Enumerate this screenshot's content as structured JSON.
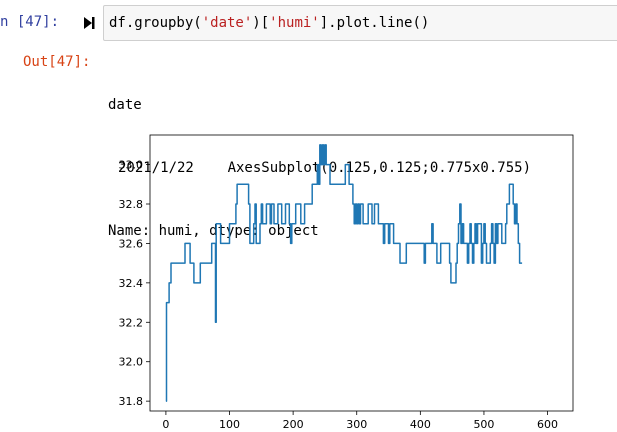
{
  "notebook": {
    "in_prompt": "n [47]:",
    "out_prompt": "Out[47]:",
    "code_parts": [
      {
        "text": "df.groupby(",
        "type": "plain"
      },
      {
        "text": "'date'",
        "type": "string"
      },
      {
        "text": ")[",
        "type": "plain"
      },
      {
        "text": "'humi'",
        "type": "string"
      },
      {
        "text": "].plot.line()",
        "type": "plain"
      }
    ],
    "output_lines": [
      "date",
      "2021/1/22    AxesSubplot(0.125,0.125;0.775x0.755)",
      "Name: humi, dtype: object"
    ]
  },
  "icons": {
    "run": "run-cell-icon"
  },
  "colors": {
    "line": "#1f77b4",
    "in_prompt": "#303f9f",
    "out_prompt": "#d84315",
    "string": "#ba2121"
  },
  "chart_data": {
    "type": "line",
    "xlim": [
      -25,
      640
    ],
    "ylim": [
      31.75,
      33.15
    ],
    "xticks": [
      0,
      100,
      200,
      300,
      400,
      500,
      600
    ],
    "yticks": [
      31.8,
      32.0,
      32.2,
      32.4,
      32.6,
      32.8,
      33.0
    ],
    "ytick_labels": [
      "31.8",
      "32.0",
      "32.2",
      "32.4",
      "32.6",
      "32.8",
      "33.0"
    ],
    "grid": false,
    "series": [
      {
        "points": [
          [
            0,
            31.8
          ],
          [
            1,
            32.3
          ],
          [
            5,
            32.4
          ],
          [
            8,
            32.5
          ],
          [
            28,
            32.5
          ],
          [
            30,
            32.6
          ],
          [
            36,
            32.6
          ],
          [
            38,
            32.5
          ],
          [
            42,
            32.5
          ],
          [
            44,
            32.4
          ],
          [
            52,
            32.4
          ],
          [
            54,
            32.5
          ],
          [
            70,
            32.5
          ],
          [
            72,
            32.6
          ],
          [
            77,
            32.6
          ],
          [
            78,
            32.2
          ],
          [
            79,
            32.7
          ],
          [
            84,
            32.7
          ],
          [
            86,
            32.6
          ],
          [
            98,
            32.6
          ],
          [
            100,
            32.7
          ],
          [
            108,
            32.7
          ],
          [
            110,
            32.8
          ],
          [
            112,
            32.9
          ],
          [
            128,
            32.9
          ],
          [
            130,
            32.8
          ],
          [
            132,
            32.6
          ],
          [
            136,
            32.6
          ],
          [
            138,
            32.7
          ],
          [
            140,
            32.8
          ],
          [
            142,
            32.6
          ],
          [
            146,
            32.6
          ],
          [
            148,
            32.7
          ],
          [
            150,
            32.8
          ],
          [
            152,
            32.7
          ],
          [
            156,
            32.7
          ],
          [
            158,
            32.8
          ],
          [
            162,
            32.8
          ],
          [
            164,
            32.7
          ],
          [
            166,
            32.8
          ],
          [
            168,
            32.8
          ],
          [
            170,
            32.7
          ],
          [
            174,
            32.7
          ],
          [
            176,
            32.8
          ],
          [
            180,
            32.8
          ],
          [
            182,
            32.7
          ],
          [
            186,
            32.7
          ],
          [
            188,
            32.8
          ],
          [
            192,
            32.8
          ],
          [
            194,
            32.7
          ],
          [
            196,
            32.6
          ],
          [
            198,
            32.7
          ],
          [
            202,
            32.7
          ],
          [
            204,
            32.8
          ],
          [
            210,
            32.8
          ],
          [
            212,
            32.7
          ],
          [
            216,
            32.7
          ],
          [
            218,
            32.8
          ],
          [
            228,
            32.8
          ],
          [
            230,
            32.9
          ],
          [
            236,
            32.9
          ],
          [
            238,
            33.0
          ],
          [
            240,
            32.9
          ],
          [
            242,
            33.1
          ],
          [
            244,
            33.0
          ],
          [
            246,
            33.1
          ],
          [
            248,
            33.0
          ],
          [
            250,
            33.1
          ],
          [
            252,
            33.0
          ],
          [
            256,
            33.0
          ],
          [
            258,
            32.9
          ],
          [
            280,
            32.9
          ],
          [
            282,
            33.0
          ],
          [
            286,
            33.0
          ],
          [
            288,
            32.9
          ],
          [
            292,
            32.9
          ],
          [
            294,
            32.8
          ],
          [
            296,
            32.7
          ],
          [
            298,
            32.8
          ],
          [
            300,
            32.7
          ],
          [
            302,
            32.8
          ],
          [
            304,
            32.7
          ],
          [
            306,
            32.8
          ],
          [
            308,
            32.8
          ],
          [
            310,
            32.7
          ],
          [
            316,
            32.7
          ],
          [
            318,
            32.8
          ],
          [
            322,
            32.8
          ],
          [
            324,
            32.7
          ],
          [
            326,
            32.7
          ],
          [
            328,
            32.8
          ],
          [
            332,
            32.8
          ],
          [
            334,
            32.7
          ],
          [
            340,
            32.7
          ],
          [
            342,
            32.6
          ],
          [
            344,
            32.7
          ],
          [
            348,
            32.7
          ],
          [
            350,
            32.6
          ],
          [
            352,
            32.7
          ],
          [
            356,
            32.7
          ],
          [
            358,
            32.6
          ],
          [
            366,
            32.6
          ],
          [
            368,
            32.5
          ],
          [
            376,
            32.5
          ],
          [
            378,
            32.6
          ],
          [
            404,
            32.6
          ],
          [
            406,
            32.5
          ],
          [
            408,
            32.6
          ],
          [
            416,
            32.6
          ],
          [
            418,
            32.7
          ],
          [
            420,
            32.6
          ],
          [
            424,
            32.6
          ],
          [
            426,
            32.5
          ],
          [
            430,
            32.5
          ],
          [
            432,
            32.6
          ],
          [
            444,
            32.6
          ],
          [
            446,
            32.5
          ],
          [
            448,
            32.4
          ],
          [
            454,
            32.4
          ],
          [
            456,
            32.5
          ],
          [
            458,
            32.6
          ],
          [
            460,
            32.7
          ],
          [
            462,
            32.8
          ],
          [
            464,
            32.6
          ],
          [
            466,
            32.7
          ],
          [
            468,
            32.6
          ],
          [
            472,
            32.6
          ],
          [
            474,
            32.5
          ],
          [
            476,
            32.6
          ],
          [
            478,
            32.7
          ],
          [
            480,
            32.6
          ],
          [
            482,
            32.5
          ],
          [
            484,
            32.6
          ],
          [
            486,
            32.7
          ],
          [
            488,
            32.6
          ],
          [
            490,
            32.7
          ],
          [
            494,
            32.7
          ],
          [
            496,
            32.5
          ],
          [
            498,
            32.6
          ],
          [
            500,
            32.7
          ],
          [
            502,
            32.6
          ],
          [
            504,
            32.5
          ],
          [
            508,
            32.5
          ],
          [
            510,
            32.6
          ],
          [
            512,
            32.7
          ],
          [
            514,
            32.6
          ],
          [
            516,
            32.5
          ],
          [
            518,
            32.7
          ],
          [
            520,
            32.6
          ],
          [
            522,
            32.7
          ],
          [
            526,
            32.7
          ],
          [
            528,
            32.6
          ],
          [
            532,
            32.6
          ],
          [
            534,
            32.7
          ],
          [
            536,
            32.8
          ],
          [
            538,
            32.8
          ],
          [
            540,
            32.9
          ],
          [
            544,
            32.9
          ],
          [
            546,
            32.8
          ],
          [
            548,
            32.7
          ],
          [
            550,
            32.8
          ],
          [
            552,
            32.7
          ],
          [
            554,
            32.6
          ],
          [
            556,
            32.5
          ],
          [
            560,
            32.5
          ]
        ]
      }
    ]
  }
}
